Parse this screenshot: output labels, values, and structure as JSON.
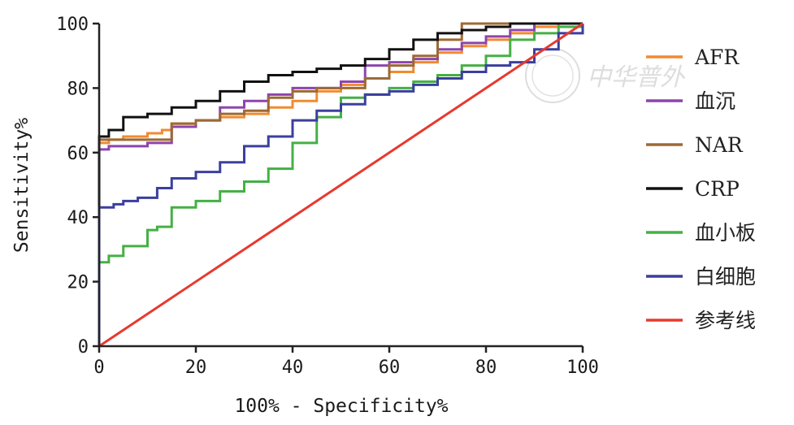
{
  "chart_data": {
    "type": "line",
    "title": "",
    "xlabel": "100% - Specificity%",
    "ylabel": "Sensitivity%",
    "xlim": [
      0,
      100
    ],
    "ylim": [
      0,
      100
    ],
    "xticks": [
      0,
      20,
      40,
      60,
      80,
      100
    ],
    "yticks": [
      0,
      20,
      40,
      60,
      80,
      100
    ],
    "grid": false,
    "legend_position": "right",
    "series": [
      {
        "name": "AFR",
        "color": "#f28a30",
        "x": [
          0,
          0,
          2,
          5,
          10,
          13,
          15,
          20,
          25,
          30,
          35,
          40,
          45,
          50,
          55,
          60,
          65,
          70,
          75,
          80,
          85,
          90,
          95,
          100
        ],
        "y": [
          0,
          63,
          64,
          65,
          66,
          67,
          69,
          70,
          71,
          72,
          74,
          76,
          79,
          81,
          83,
          85,
          88,
          91,
          93,
          95,
          97,
          99,
          100,
          100
        ]
      },
      {
        "name": "血沉",
        "color": "#8e44ad",
        "x": [
          0,
          0,
          2,
          5,
          10,
          12,
          15,
          20,
          25,
          30,
          35,
          40,
          45,
          50,
          55,
          60,
          65,
          70,
          75,
          80,
          85,
          90,
          95,
          100
        ],
        "y": [
          0,
          61,
          62,
          62,
          63,
          63,
          68,
          70,
          74,
          76,
          78,
          80,
          80,
          82,
          87,
          88,
          89,
          92,
          94,
          96,
          98,
          100,
          100,
          100
        ]
      },
      {
        "name": "NAR",
        "color": "#9c6a35",
        "x": [
          0,
          0,
          3,
          8,
          12,
          15,
          20,
          25,
          30,
          35,
          40,
          45,
          50,
          55,
          60,
          65,
          70,
          75,
          80,
          85,
          90,
          95,
          100
        ],
        "y": [
          0,
          64,
          64,
          64,
          64,
          69,
          70,
          72,
          73,
          77,
          79,
          80,
          80,
          83,
          87,
          90,
          95,
          100,
          100,
          100,
          100,
          100,
          100
        ]
      },
      {
        "name": "CRP",
        "color": "#111111",
        "x": [
          0,
          0,
          2,
          5,
          10,
          15,
          20,
          25,
          30,
          35,
          40,
          45,
          50,
          55,
          60,
          65,
          70,
          75,
          80,
          85,
          90,
          95,
          100
        ],
        "y": [
          0,
          65,
          67,
          71,
          72,
          74,
          76,
          79,
          82,
          84,
          85,
          86,
          87,
          89,
          92,
          95,
          97,
          98,
          99,
          100,
          100,
          100,
          100
        ]
      },
      {
        "name": "血小板",
        "color": "#45b045",
        "x": [
          0,
          0,
          2,
          5,
          10,
          12,
          15,
          20,
          25,
          30,
          35,
          40,
          45,
          50,
          55,
          60,
          65,
          70,
          75,
          80,
          85,
          90,
          95,
          100
        ],
        "y": [
          0,
          26,
          28,
          31,
          36,
          37,
          43,
          45,
          48,
          51,
          55,
          63,
          71,
          77,
          78,
          80,
          82,
          84,
          87,
          90,
          95,
          97,
          99,
          100
        ]
      },
      {
        "name": "白细胞",
        "color": "#3b3f9e",
        "x": [
          0,
          0,
          3,
          5,
          8,
          12,
          15,
          20,
          25,
          30,
          35,
          40,
          45,
          50,
          55,
          60,
          65,
          70,
          75,
          80,
          85,
          90,
          95,
          100
        ],
        "y": [
          0,
          43,
          44,
          45,
          46,
          49,
          52,
          54,
          57,
          62,
          65,
          70,
          73,
          75,
          78,
          79,
          81,
          83,
          85,
          87,
          88,
          92,
          97,
          100
        ]
      },
      {
        "name": "参考线",
        "color": "#e63a2e",
        "x": [
          0,
          100
        ],
        "y": [
          0,
          100
        ]
      }
    ]
  },
  "watermark": {
    "text": "中华普外"
  }
}
